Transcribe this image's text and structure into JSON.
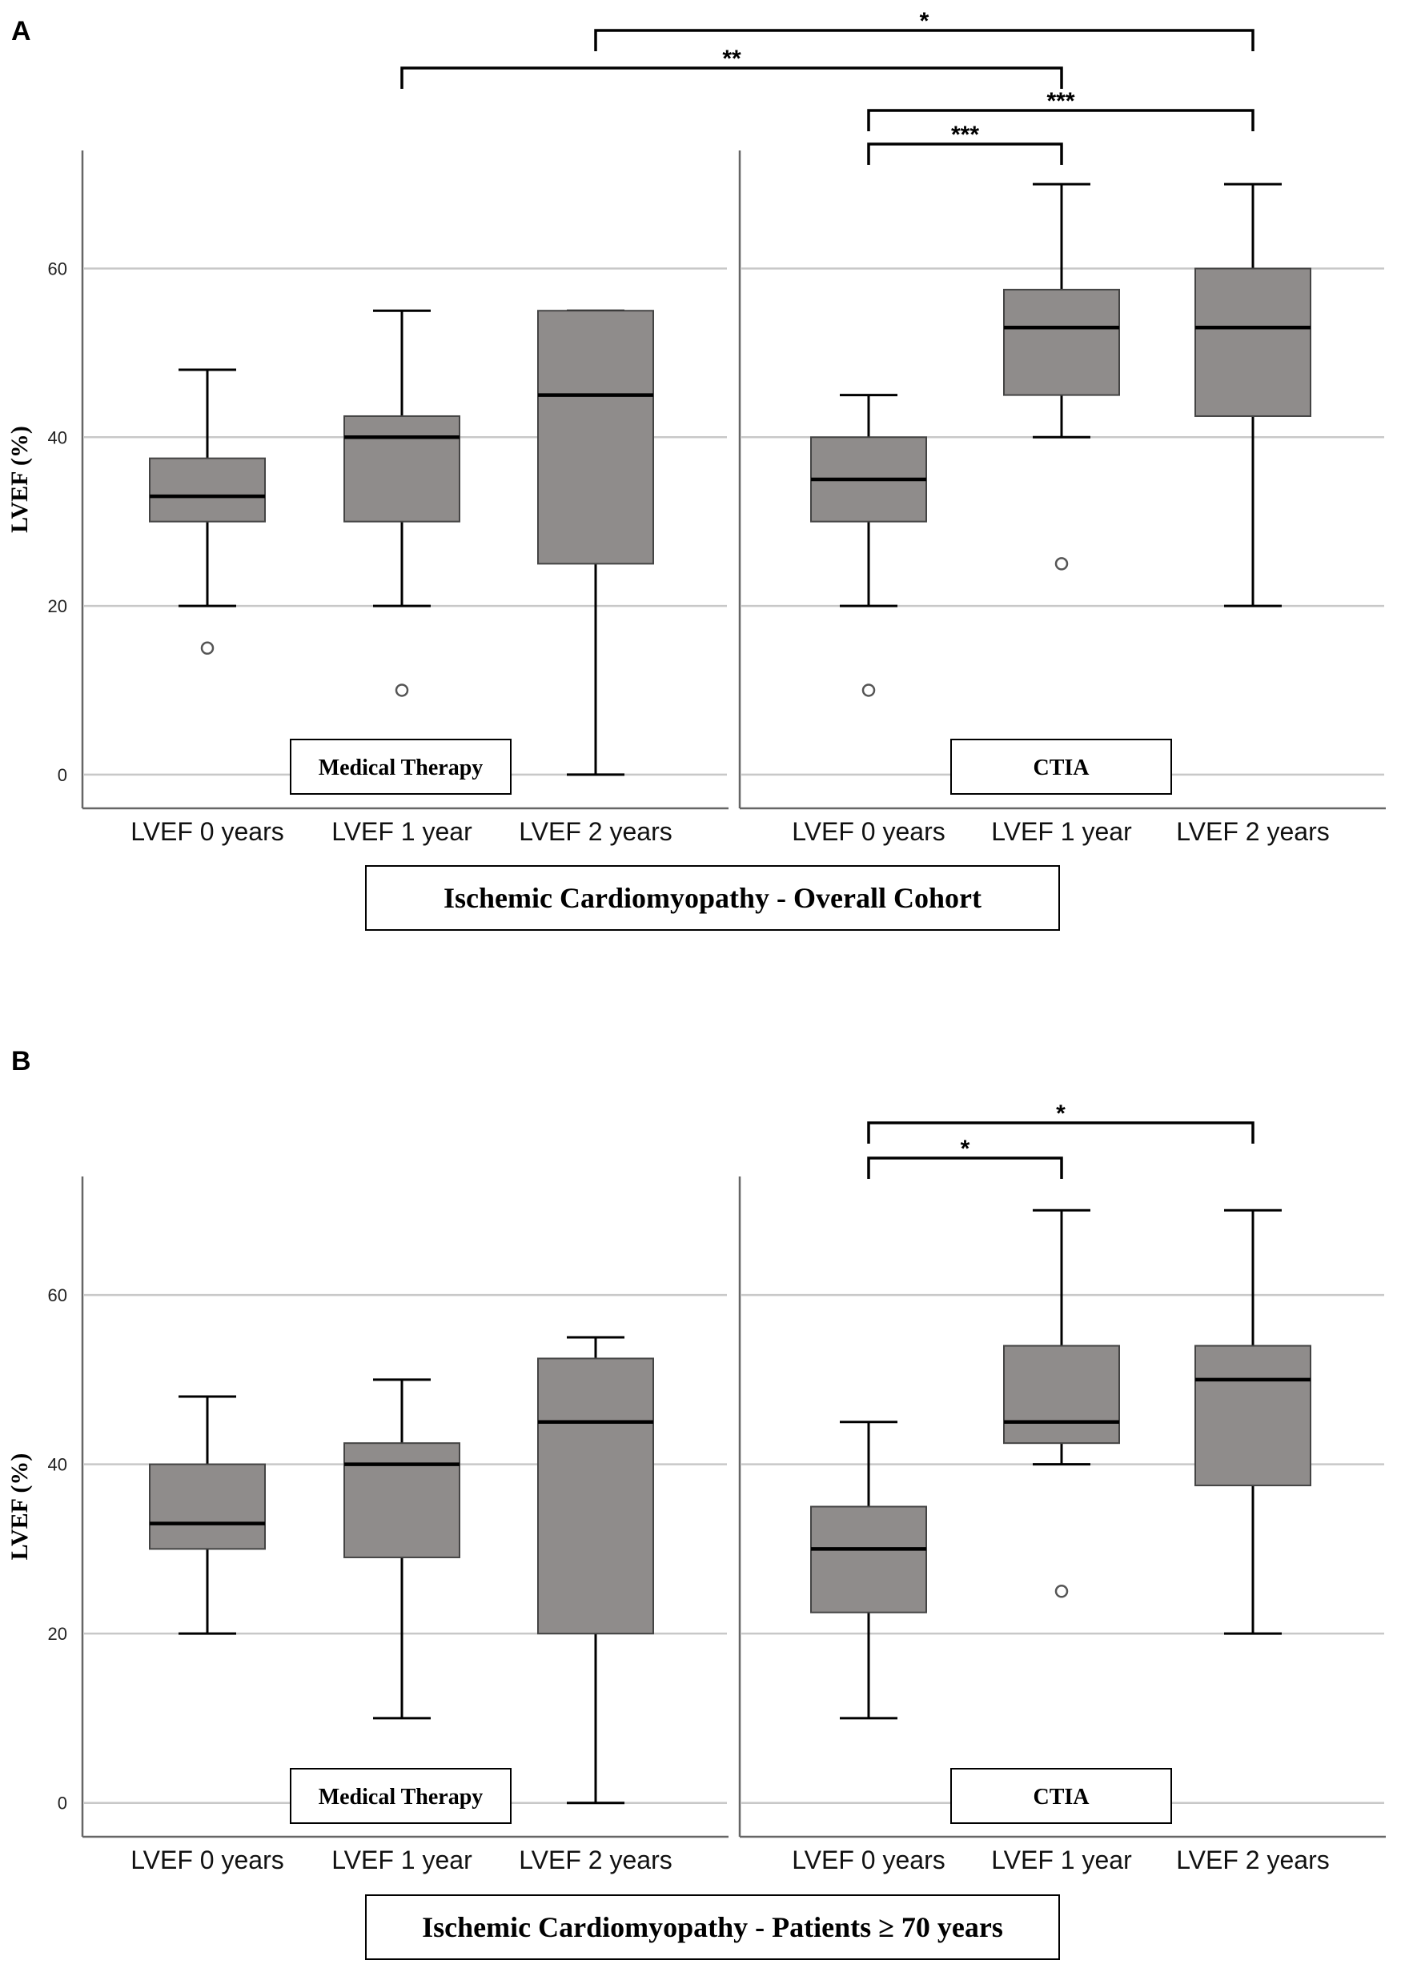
{
  "chart_data": [
    {
      "type": "box",
      "panel_label": "A",
      "title": "Ischemic Cardiomyopathy - Overall Cohort",
      "ylabel": "LVEF (%)",
      "ylim": [
        -4,
        74
      ],
      "yticks": [
        0,
        20,
        40,
        60
      ],
      "grid": true,
      "groups": [
        {
          "name": "Medical Therapy",
          "categories": [
            "LVEF 0 years",
            "LVEF 1 year",
            "LVEF 2 years"
          ],
          "boxes": [
            {
              "whisker_low": 20,
              "q1": 30,
              "median": 33,
              "q3": 37.5,
              "whisker_high": 48,
              "outliers": [
                15
              ]
            },
            {
              "whisker_low": 20,
              "q1": 30,
              "median": 40,
              "q3": 42.5,
              "whisker_high": 55,
              "outliers": [
                10
              ]
            },
            {
              "whisker_low": 0,
              "q1": 25,
              "median": 45,
              "q3": 55,
              "whisker_high": 55,
              "outliers": []
            }
          ]
        },
        {
          "name": "CTIA",
          "categories": [
            "LVEF 0 years",
            "LVEF 1 year",
            "LVEF 2 years"
          ],
          "boxes": [
            {
              "whisker_low": 20,
              "q1": 30,
              "median": 35,
              "q3": 40,
              "whisker_high": 45,
              "outliers": [
                10
              ]
            },
            {
              "whisker_low": 40,
              "q1": 45,
              "median": 53,
              "q3": 57.5,
              "whisker_high": 70,
              "outliers": [
                25
              ]
            },
            {
              "whisker_low": 20,
              "q1": 42.5,
              "median": 53,
              "q3": 60,
              "whisker_high": 70,
              "outliers": []
            }
          ]
        }
      ],
      "significance": [
        {
          "from": [
            0,
            2
          ],
          "to": [
            1,
            2
          ],
          "label": "*"
        },
        {
          "from": [
            0,
            1
          ],
          "to": [
            1,
            1
          ],
          "label": "**"
        },
        {
          "from": [
            1,
            0
          ],
          "to": [
            1,
            2
          ],
          "label": "***"
        },
        {
          "from": [
            1,
            0
          ],
          "to": [
            1,
            1
          ],
          "label": "***"
        }
      ]
    },
    {
      "type": "box",
      "panel_label": "B",
      "title": "Ischemic Cardiomyopathy - Patients ≥ 70 years",
      "ylabel": "LVEF (%)",
      "ylim": [
        -4,
        74
      ],
      "yticks": [
        0,
        20,
        40,
        60
      ],
      "grid": true,
      "groups": [
        {
          "name": "Medical Therapy",
          "categories": [
            "LVEF 0 years",
            "LVEF 1 year",
            "LVEF 2 years"
          ],
          "boxes": [
            {
              "whisker_low": 20,
              "q1": 30,
              "median": 33,
              "q3": 40,
              "whisker_high": 48,
              "outliers": []
            },
            {
              "whisker_low": 10,
              "q1": 29,
              "median": 40,
              "q3": 42.5,
              "whisker_high": 50,
              "outliers": []
            },
            {
              "whisker_low": 0,
              "q1": 20,
              "median": 45,
              "q3": 52.5,
              "whisker_high": 55,
              "outliers": []
            }
          ]
        },
        {
          "name": "CTIA",
          "categories": [
            "LVEF 0 years",
            "LVEF 1 year",
            "LVEF 2 years"
          ],
          "boxes": [
            {
              "whisker_low": 10,
              "q1": 22.5,
              "median": 30,
              "q3": 35,
              "whisker_high": 45,
              "outliers": []
            },
            {
              "whisker_low": 40,
              "q1": 42.5,
              "median": 45,
              "q3": 54,
              "whisker_high": 70,
              "outliers": [
                25
              ]
            },
            {
              "whisker_low": 20,
              "q1": 37.5,
              "median": 50,
              "q3": 54,
              "whisker_high": 70,
              "outliers": []
            }
          ]
        }
      ],
      "significance": [
        {
          "from": [
            1,
            0
          ],
          "to": [
            1,
            2
          ],
          "label": "*"
        },
        {
          "from": [
            1,
            0
          ],
          "to": [
            1,
            1
          ],
          "label": "*"
        }
      ]
    }
  ],
  "colors": {
    "box_fill": "#8f8c8b",
    "line": "#000000",
    "grid": "#c8c8c8",
    "axis": "#666666"
  }
}
